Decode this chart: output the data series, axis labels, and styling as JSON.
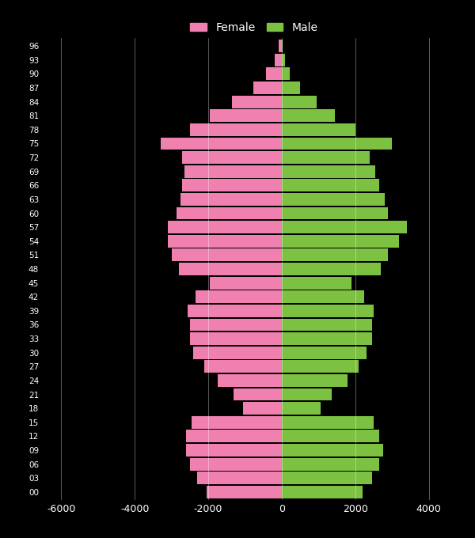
{
  "background_color": "#000000",
  "bar_color_female": "#f080b0",
  "bar_color_male": "#7dc142",
  "grid_color": "#ffffff",
  "text_color": "#ffffff",
  "xlim": [
    -6500,
    5000
  ],
  "xticks": [
    -6000,
    -4000,
    -2000,
    0,
    2000,
    4000
  ],
  "xtick_labels": [
    "-6000",
    "-4000",
    "-2000",
    "0",
    "2000",
    "4000"
  ],
  "age_groups": [
    0,
    3,
    6,
    9,
    12,
    15,
    18,
    21,
    24,
    27,
    30,
    33,
    36,
    39,
    42,
    45,
    48,
    51,
    54,
    57,
    60,
    63,
    66,
    69,
    72,
    75,
    78,
    81,
    84,
    87,
    90,
    93,
    96
  ],
  "female": [
    2050,
    2300,
    2500,
    2600,
    2600,
    2450,
    1050,
    1300,
    1750,
    2100,
    2400,
    2500,
    2500,
    2550,
    2350,
    1950,
    2800,
    3000,
    3100,
    3100,
    2850,
    2750,
    2700,
    2650,
    2700,
    3300,
    2500,
    1950,
    1350,
    780,
    420,
    180,
    80
  ],
  "male": [
    2200,
    2450,
    2650,
    2750,
    2650,
    2500,
    1050,
    1350,
    1800,
    2100,
    2300,
    2450,
    2450,
    2500,
    2250,
    1900,
    2700,
    2900,
    3200,
    3400,
    2900,
    2800,
    2650,
    2550,
    2400,
    3000,
    2000,
    1450,
    950,
    500,
    220,
    100,
    30
  ]
}
